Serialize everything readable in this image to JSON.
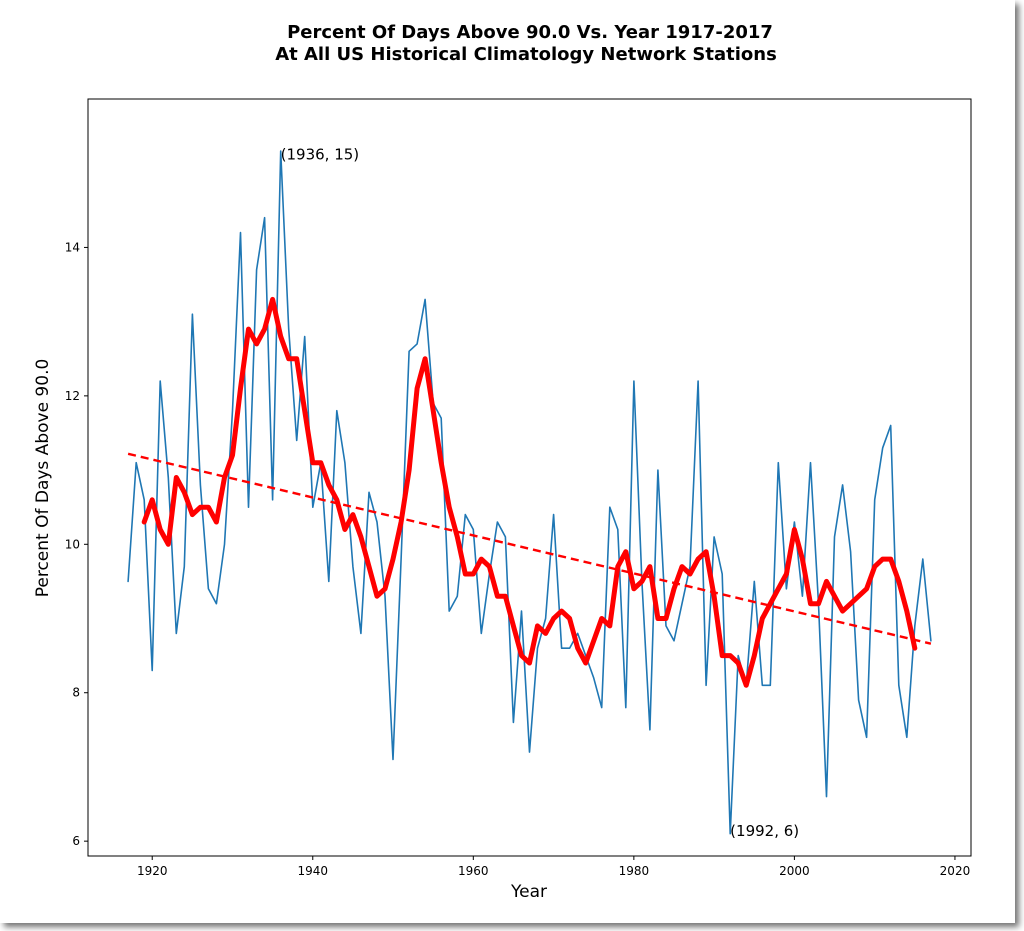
{
  "chart_data": {
    "type": "line",
    "title": "Percent Of Days Above 90.0 Vs. Year 1917-2017",
    "subtitle": "At All US Historical Climatology Network Stations",
    "xlabel": "Year",
    "ylabel": "Percent Of Days Above 90.0",
    "xlim": [
      1912,
      2022
    ],
    "ylim": [
      5.8,
      16.0
    ],
    "xticks": [
      1920,
      1940,
      1960,
      1980,
      2000,
      2020
    ],
    "yticks": [
      6,
      8,
      10,
      12,
      14
    ],
    "grid": false,
    "legend": "none",
    "series": [
      {
        "role": "annual",
        "color": "#1f77b4",
        "x": [
          1917,
          1918,
          1919,
          1920,
          1921,
          1922,
          1923,
          1924,
          1925,
          1926,
          1927,
          1928,
          1929,
          1930,
          1931,
          1932,
          1933,
          1934,
          1935,
          1936,
          1937,
          1938,
          1939,
          1940,
          1941,
          1942,
          1943,
          1944,
          1945,
          1946,
          1947,
          1948,
          1949,
          1950,
          1951,
          1952,
          1953,
          1954,
          1955,
          1956,
          1957,
          1958,
          1959,
          1960,
          1961,
          1962,
          1963,
          1964,
          1965,
          1966,
          1967,
          1968,
          1969,
          1970,
          1971,
          1972,
          1973,
          1974,
          1975,
          1976,
          1977,
          1978,
          1979,
          1980,
          1981,
          1982,
          1983,
          1984,
          1985,
          1986,
          1987,
          1988,
          1989,
          1990,
          1991,
          1992,
          1993,
          1994,
          1995,
          1996,
          1997,
          1998,
          1999,
          2000,
          2001,
          2002,
          2003,
          2004,
          2005,
          2006,
          2007,
          2008,
          2009,
          2010,
          2011,
          2012,
          2013,
          2014,
          2015,
          2016,
          2017
        ],
        "y": [
          9.5,
          11.1,
          10.6,
          8.3,
          12.2,
          10.9,
          8.8,
          9.7,
          13.1,
          10.8,
          9.4,
          9.2,
          10.0,
          11.8,
          14.2,
          10.5,
          13.7,
          14.4,
          10.6,
          15.3,
          12.9,
          11.4,
          12.8,
          10.5,
          11.1,
          9.5,
          11.8,
          11.1,
          9.7,
          8.8,
          10.7,
          10.3,
          9.3,
          7.1,
          9.8,
          12.6,
          12.7,
          13.3,
          11.9,
          11.7,
          9.1,
          9.3,
          10.4,
          10.2,
          8.8,
          9.6,
          10.3,
          10.1,
          7.6,
          9.1,
          7.2,
          8.6,
          9.0,
          10.4,
          8.6,
          8.6,
          8.8,
          8.5,
          8.2,
          7.8,
          10.5,
          10.2,
          7.8,
          12.2,
          9.5,
          7.5,
          11.0,
          8.9,
          8.7,
          9.2,
          9.7,
          12.2,
          8.1,
          10.1,
          9.6,
          6.1,
          8.5,
          8.1,
          9.5,
          8.1,
          8.1,
          11.1,
          9.4,
          10.3,
          9.3,
          11.1,
          9.2,
          6.6,
          10.1,
          10.8,
          9.9,
          7.9,
          7.4,
          10.6,
          11.3,
          11.6,
          8.1,
          7.4,
          8.9,
          9.8,
          8.7
        ]
      },
      {
        "role": "running-mean",
        "color": "#ff0000",
        "x": [
          1919,
          1920,
          1921,
          1922,
          1923,
          1924,
          1925,
          1926,
          1927,
          1928,
          1929,
          1930,
          1931,
          1932,
          1933,
          1934,
          1935,
          1936,
          1937,
          1938,
          1939,
          1940,
          1941,
          1942,
          1943,
          1944,
          1945,
          1946,
          1947,
          1948,
          1949,
          1950,
          1951,
          1952,
          1953,
          1954,
          1955,
          1956,
          1957,
          1958,
          1959,
          1960,
          1961,
          1962,
          1963,
          1964,
          1965,
          1966,
          1967,
          1968,
          1969,
          1970,
          1971,
          1972,
          1973,
          1974,
          1975,
          1976,
          1977,
          1978,
          1979,
          1980,
          1981,
          1982,
          1983,
          1984,
          1985,
          1986,
          1987,
          1988,
          1989,
          1990,
          1991,
          1992,
          1993,
          1994,
          1995,
          1996,
          1997,
          1998,
          1999,
          2000,
          2001,
          2002,
          2003,
          2004,
          2005,
          2006,
          2007,
          2008,
          2009,
          2010,
          2011,
          2012,
          2013,
          2014,
          2015
        ],
        "y": [
          10.3,
          10.6,
          10.2,
          10.0,
          10.9,
          10.7,
          10.4,
          10.5,
          10.5,
          10.3,
          10.9,
          11.2,
          12.1,
          12.9,
          12.7,
          12.9,
          13.3,
          12.8,
          12.5,
          12.5,
          11.8,
          11.1,
          11.1,
          10.8,
          10.6,
          10.2,
          10.4,
          10.1,
          9.7,
          9.3,
          9.4,
          9.8,
          10.3,
          11.0,
          12.1,
          12.5,
          11.8,
          11.1,
          10.5,
          10.1,
          9.6,
          9.6,
          9.8,
          9.7,
          9.3,
          9.3,
          8.9,
          8.5,
          8.4,
          8.9,
          8.8,
          9.0,
          9.1,
          9.0,
          8.6,
          8.4,
          8.7,
          9.0,
          8.9,
          9.7,
          9.9,
          9.4,
          9.5,
          9.7,
          9.0,
          9.0,
          9.4,
          9.7,
          9.6,
          9.8,
          9.9,
          9.3,
          8.5,
          8.5,
          8.4,
          8.1,
          8.5,
          9.0,
          9.2,
          9.4,
          9.6,
          10.2,
          9.8,
          9.2,
          9.2,
          9.5,
          9.3,
          9.1,
          9.2,
          9.3,
          9.4,
          9.7,
          9.8,
          9.8,
          9.5,
          9.1,
          8.6
        ]
      },
      {
        "role": "trend",
        "color": "#ff0000",
        "dashed": true,
        "x": [
          1917,
          2017
        ],
        "y": [
          11.22,
          8.66
        ]
      }
    ],
    "annotations": [
      {
        "text": "(1936, 15)",
        "x": 1936,
        "y": 15.25
      },
      {
        "text": "(1992, 6)",
        "x": 1992,
        "y": 6.14
      }
    ]
  }
}
